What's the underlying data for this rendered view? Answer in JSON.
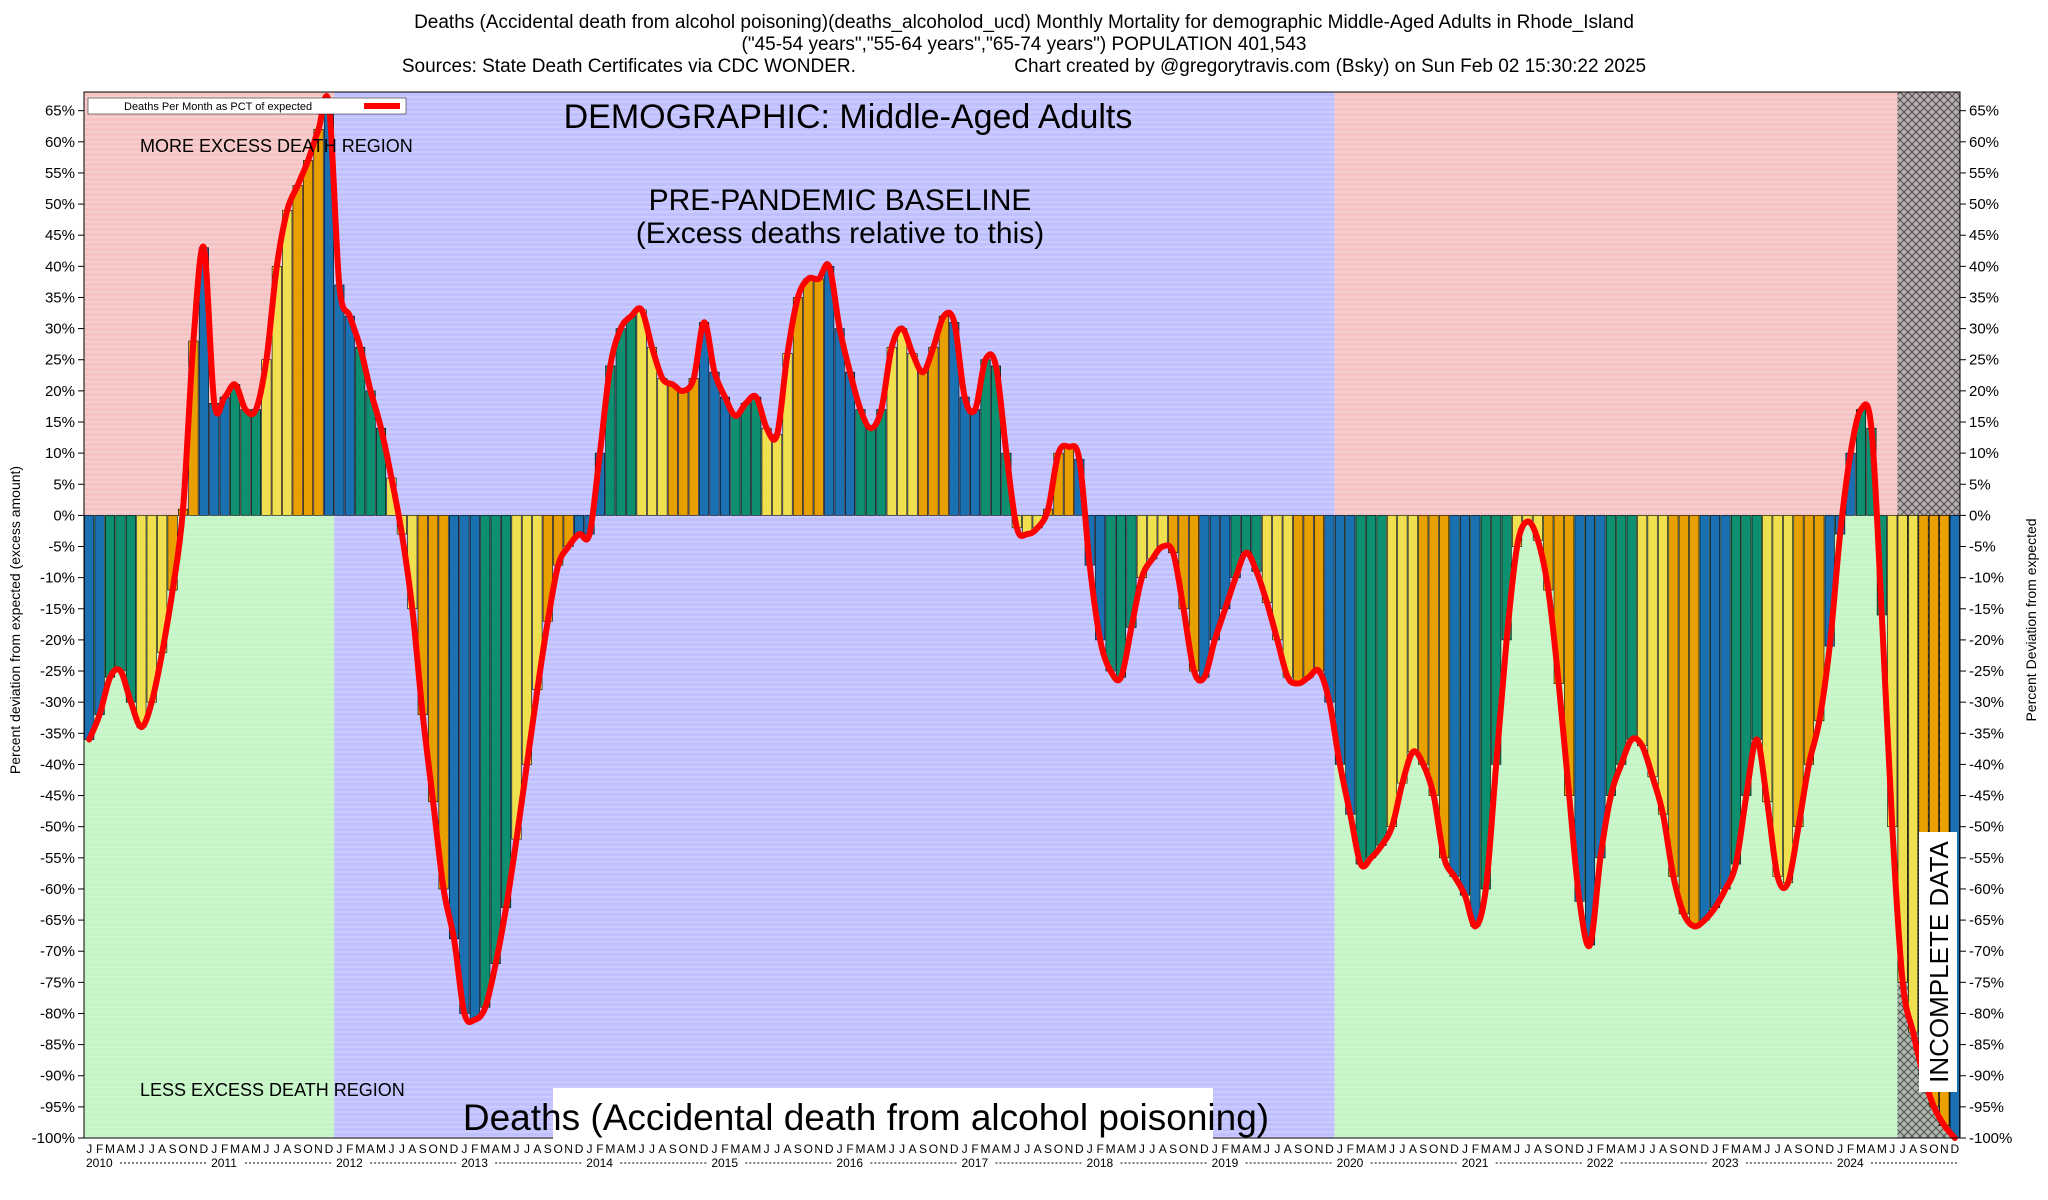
{
  "header": {
    "title_line1": "Deaths (Accidental death from alcohol poisoning)(deaths_alcoholod_ucd) Monthly Mortality for demographic Middle-Aged Adults in Rhode_Island",
    "title_line2": "(\"45-54 years\",\"55-64 years\",\"65-74 years\") POPULATION 401,543",
    "sources": "Sources: State Death Certificates via CDC WONDER.",
    "credit": "Chart created by @gregorytravis.com (Bsky) on Sun Feb 02 15:30:22 2025"
  },
  "chart_data": {
    "type": "bar",
    "demographic_label": "DEMOGRAPHIC: Middle-Aged Adults",
    "baseline_label_1": "PRE-PANDEMIC BASELINE",
    "baseline_label_2": "(Excess deaths relative to this)",
    "more_region_label": "MORE EXCESS DEATH REGION",
    "less_region_label": "LESS EXCESS DEATH REGION",
    "bottom_label": "Deaths (Accidental death from alcohol poisoning)",
    "incomplete_label": "INCOMPLETE DATA",
    "legend_label": "Deaths Per Month as PCT of expected",
    "ylabel_left": "Percent deviation from expected (excess amount)",
    "ylabel_right": "Percent Deviation from expected",
    "ylim": [
      -100,
      68
    ],
    "yticks": [
      65,
      60,
      55,
      50,
      45,
      40,
      35,
      30,
      25,
      20,
      15,
      10,
      5,
      0,
      -5,
      -10,
      -15,
      -20,
      -25,
      -30,
      -35,
      -40,
      -45,
      -50,
      -55,
      -60,
      -65,
      -70,
      -75,
      -80,
      -85,
      -90,
      -95,
      -100
    ],
    "month_letters": [
      "J",
      "F",
      "M",
      "A",
      "M",
      "J",
      "J",
      "A",
      "S",
      "O",
      "N",
      "D"
    ],
    "years": [
      "2010",
      "2011",
      "2012",
      "2013",
      "2014",
      "2015",
      "2016",
      "2017",
      "2018",
      "2019",
      "2020",
      "2021",
      "2022",
      "2023",
      "2024"
    ],
    "start": "2010-01",
    "baseline_period": [
      "2012-01",
      "2019-12"
    ],
    "incomplete_from": "2024-07",
    "colors": {
      "excess_region": "#f5c3c3",
      "less_region": "#c4f5c4",
      "baseline_region": "#c0c0ff",
      "line": "#ff0000",
      "bar_winter": "#1a70b0",
      "bar_spring": "#0e9070",
      "bar_summer": "#f0e050",
      "bar_autumn": "#e8a000"
    },
    "values": [
      -36,
      -32,
      -26,
      -25,
      -30,
      -34,
      -30,
      -22,
      -12,
      1,
      28,
      43,
      18,
      19,
      21,
      17,
      17,
      25,
      40,
      49,
      53,
      57,
      62,
      66,
      37,
      32,
      27,
      20,
      14,
      6,
      -3,
      -15,
      -32,
      -46,
      -60,
      -68,
      -80,
      -81,
      -79,
      -72,
      -63,
      -52,
      -40,
      -28,
      -17,
      -8,
      -5,
      -3,
      -3,
      10,
      24,
      30,
      32,
      33,
      27,
      22,
      21,
      20,
      22,
      31,
      23,
      19,
      16,
      18,
      19,
      14,
      13,
      26,
      35,
      38,
      38,
      40,
      30,
      23,
      17,
      14,
      17,
      27,
      30,
      26,
      23,
      27,
      32,
      31,
      19,
      17,
      25,
      24,
      10,
      -2,
      -3,
      -2,
      1,
      10,
      11,
      9,
      -8,
      -20,
      -25,
      -26,
      -18,
      -10,
      -7,
      -5,
      -6,
      -15,
      -25,
      -26,
      -20,
      -15,
      -10,
      -6,
      -9,
      -14,
      -20,
      -26,
      -27,
      -26,
      -25,
      -30,
      -40,
      -48,
      -56,
      -55,
      -53,
      -50,
      -43,
      -38,
      -40,
      -45,
      -55,
      -58,
      -61,
      -66,
      -60,
      -40,
      -20,
      -5,
      -1,
      -4,
      -12,
      -27,
      -45,
      -62,
      -69,
      -55,
      -45,
      -40,
      -36,
      -37,
      -42,
      -48,
      -58,
      -64,
      -66,
      -65,
      -63,
      -60,
      -56,
      -45,
      -36,
      -46,
      -58,
      -59,
      -50,
      -40,
      -33,
      -21,
      -3,
      10,
      17,
      14,
      -16,
      -50,
      -75,
      -83,
      -90,
      -95,
      -98,
      -100
    ]
  }
}
